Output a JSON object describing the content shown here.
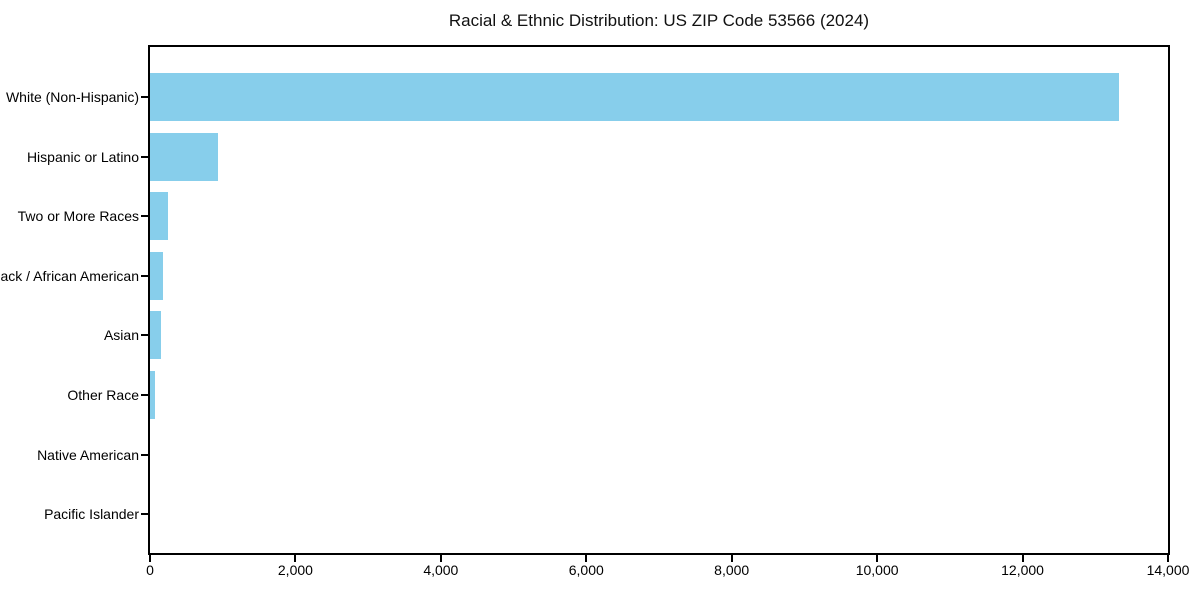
{
  "chart_data": {
    "type": "bar",
    "orientation": "horizontal",
    "title": "Racial & Ethnic Distribution: US ZIP Code 53566 (2024)",
    "categories": [
      "White (Non-Hispanic)",
      "Hispanic or Latino",
      "Two or More Races",
      "Black / African American",
      "Asian",
      "Other Race",
      "Native American",
      "Pacific Islander"
    ],
    "values": [
      13330,
      935,
      245,
      175,
      150,
      70,
      0,
      0
    ],
    "xlabel": "",
    "ylabel": "",
    "xlim": [
      0,
      14000
    ],
    "x_ticks": [
      0,
      2000,
      4000,
      6000,
      8000,
      10000,
      12000,
      14000
    ],
    "x_tick_labels": [
      "0",
      "2,000",
      "4,000",
      "6,000",
      "8,000",
      "10,000",
      "12,000",
      "14,000"
    ],
    "bar_color": "#87CEEB",
    "spine_color": "#000000",
    "grid": false,
    "legend": null
  }
}
